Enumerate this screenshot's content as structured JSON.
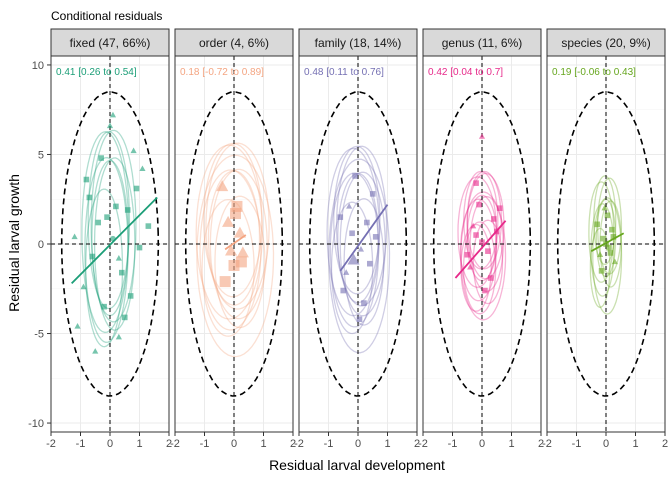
{
  "chart_data": {
    "type": "scatter",
    "title": "Conditional residuals",
    "xlabel": "Residual larval development",
    "ylabel": "Residual larval growth",
    "xlim": [
      -2,
      2
    ],
    "ylim": [
      -10.5,
      10.5
    ],
    "x_ticks": [
      -2,
      -1,
      0,
      1,
      2
    ],
    "x_tick_labels": [
      "-2",
      "-1",
      "0",
      "1",
      "2"
    ],
    "y_ticks": [
      -10,
      -5,
      0,
      5,
      10
    ],
    "y_tick_labels": [
      "-10",
      "-5",
      "0",
      "5",
      "10"
    ],
    "grid": true,
    "reference_lines": {
      "x": 0,
      "y": 0,
      "style": "dashed"
    },
    "overall_ellipse": {
      "cx": 0,
      "cy": 0,
      "angle_deg": 28,
      "major_sd": 10.5,
      "minor_sd": 1.35
    },
    "panels": [
      {
        "strip": "fixed (47, 66%)",
        "annotation": "0.41 [0.26 to 0.54]",
        "color": "#1b9e77",
        "regression": {
          "x": [
            -1.3,
            1.6
          ],
          "y": [
            -2.2,
            2.6
          ]
        },
        "ellipse_spread": {
          "rx": 0.85,
          "ry": 6.0,
          "count": 7
        },
        "points": [
          {
            "x": -0.4,
            "y": 1.2,
            "shape": "square"
          },
          {
            "x": 0.3,
            "y": -0.8,
            "shape": "triangle"
          },
          {
            "x": 0.9,
            "y": 3.1,
            "shape": "square"
          },
          {
            "x": -0.9,
            "y": -2.4,
            "shape": "triangle"
          },
          {
            "x": 0.1,
            "y": 0.3,
            "shape": "circle"
          },
          {
            "x": 0.6,
            "y": 1.9,
            "shape": "square"
          },
          {
            "x": -0.2,
            "y": -3.5,
            "shape": "square"
          },
          {
            "x": 1.1,
            "y": 4.2,
            "shape": "triangle"
          },
          {
            "x": -0.7,
            "y": 2.6,
            "shape": "square"
          },
          {
            "x": 0.4,
            "y": -1.6,
            "shape": "square"
          },
          {
            "x": -1.1,
            "y": -4.6,
            "shape": "triangle"
          },
          {
            "x": 0.8,
            "y": 5.2,
            "shape": "triangle"
          },
          {
            "x": -0.3,
            "y": 4.8,
            "shape": "square"
          },
          {
            "x": 0.5,
            "y": -4.1,
            "shape": "square"
          },
          {
            "x": 0.0,
            "y": 6.6,
            "shape": "triangle"
          },
          {
            "x": 0.2,
            "y": 2.1,
            "shape": "square"
          },
          {
            "x": -0.6,
            "y": -0.7,
            "shape": "square"
          },
          {
            "x": 1.3,
            "y": 1.0,
            "shape": "square"
          },
          {
            "x": -1.2,
            "y": 0.4,
            "shape": "triangle"
          },
          {
            "x": 0.7,
            "y": -2.9,
            "shape": "square"
          },
          {
            "x": 0.1,
            "y": 7.2,
            "shape": "triangle"
          },
          {
            "x": -0.5,
            "y": -6.0,
            "shape": "triangle"
          },
          {
            "x": 1.0,
            "y": -0.2,
            "shape": "square"
          },
          {
            "x": -0.8,
            "y": 3.6,
            "shape": "square"
          },
          {
            "x": 0.3,
            "y": -5.2,
            "shape": "triangle"
          },
          {
            "x": -0.1,
            "y": 1.5,
            "shape": "square"
          }
        ]
      },
      {
        "strip": "order (4, 6%)",
        "annotation": "0.18 [-0.72 to 0.89]",
        "color": "#f4a582",
        "regression": {
          "x": [
            -0.3,
            0.4
          ],
          "y": [
            -0.3,
            0.5
          ]
        },
        "ellipse_spread": {
          "rx": 1.2,
          "ry": 5.2,
          "count": 9
        },
        "points": [
          {
            "x": 0.1,
            "y": 2.1,
            "shape": "square",
            "size": "large"
          },
          {
            "x": -0.2,
            "y": 1.2,
            "shape": "triangle",
            "size": "large"
          },
          {
            "x": 0.3,
            "y": -0.5,
            "shape": "triangle",
            "size": "large"
          },
          {
            "x": 0.0,
            "y": -1.2,
            "shape": "square",
            "size": "large"
          },
          {
            "x": -0.3,
            "y": -2.1,
            "shape": "square",
            "size": "large"
          },
          {
            "x": 0.2,
            "y": 0.6,
            "shape": "triangle",
            "size": "large"
          },
          {
            "x": 0.05,
            "y": 1.7,
            "shape": "square",
            "size": "large"
          },
          {
            "x": -0.1,
            "y": -0.4,
            "shape": "triangle",
            "size": "large"
          },
          {
            "x": 0.25,
            "y": -1.0,
            "shape": "square",
            "size": "large"
          },
          {
            "x": -0.4,
            "y": 3.2,
            "shape": "triangle",
            "size": "large"
          }
        ]
      },
      {
        "strip": "family (18, 14%)",
        "annotation": "0.48 [0.11 to 0.76]",
        "color": "#7570b3",
        "regression": {
          "x": [
            -0.6,
            1.0
          ],
          "y": [
            -1.5,
            2.2
          ]
        },
        "ellipse_spread": {
          "rx": 0.95,
          "ry": 5.0,
          "count": 9
        },
        "points": [
          {
            "x": -0.2,
            "y": 0.6,
            "shape": "square"
          },
          {
            "x": 0.3,
            "y": 1.2,
            "shape": "square"
          },
          {
            "x": -0.4,
            "y": -1.6,
            "shape": "triangle"
          },
          {
            "x": 0.5,
            "y": 2.8,
            "shape": "square"
          },
          {
            "x": -0.5,
            "y": -2.6,
            "shape": "square"
          },
          {
            "x": 0.1,
            "y": -0.3,
            "shape": "triangle"
          },
          {
            "x": 0.6,
            "y": 0.4,
            "shape": "square"
          },
          {
            "x": -0.1,
            "y": 3.8,
            "shape": "square"
          },
          {
            "x": 0.2,
            "y": -3.3,
            "shape": "square"
          },
          {
            "x": -0.3,
            "y": 2.1,
            "shape": "triangle"
          },
          {
            "x": 0.4,
            "y": -1.1,
            "shape": "square"
          },
          {
            "x": -0.6,
            "y": 1.5,
            "shape": "square"
          },
          {
            "x": 0.05,
            "y": -4.2,
            "shape": "square"
          },
          {
            "x": -0.15,
            "y": -0.9,
            "shape": "triangle",
            "size": "large"
          }
        ]
      },
      {
        "strip": "genus (11, 6%)",
        "annotation": "0.42 [0.04 to 0.7]",
        "color": "#e7298a",
        "regression": {
          "x": [
            -0.9,
            0.8
          ],
          "y": [
            -1.9,
            1.3
          ]
        },
        "ellipse_spread": {
          "rx": 0.7,
          "ry": 3.3,
          "count": 11
        },
        "points": [
          {
            "x": -0.2,
            "y": 0.5,
            "shape": "square"
          },
          {
            "x": 0.2,
            "y": -0.4,
            "shape": "square"
          },
          {
            "x": -0.4,
            "y": -1.3,
            "shape": "triangle"
          },
          {
            "x": 0.4,
            "y": 1.4,
            "shape": "square"
          },
          {
            "x": 0.0,
            "y": 0.1,
            "shape": "square"
          },
          {
            "x": -0.1,
            "y": 2.2,
            "shape": "square"
          },
          {
            "x": 0.3,
            "y": -1.9,
            "shape": "square"
          },
          {
            "x": -0.3,
            "y": 1.0,
            "shape": "triangle"
          },
          {
            "x": 0.5,
            "y": 0.7,
            "shape": "square"
          },
          {
            "x": -0.5,
            "y": -0.6,
            "shape": "square"
          },
          {
            "x": 0.1,
            "y": -2.6,
            "shape": "square"
          },
          {
            "x": 0.0,
            "y": 6.0,
            "shape": "triangle"
          },
          {
            "x": -0.2,
            "y": 3.4,
            "shape": "square"
          },
          {
            "x": 0.6,
            "y": 2.0,
            "shape": "square"
          }
        ]
      },
      {
        "strip": "species (20, 9%)",
        "annotation": "0.19 [-0.06 to 0.43]",
        "color": "#66a61e",
        "regression": {
          "x": [
            -0.5,
            0.6
          ],
          "y": [
            -0.4,
            0.6
          ]
        },
        "ellipse_spread": {
          "rx": 0.45,
          "ry": 3.0,
          "count": 8
        },
        "points": [
          {
            "x": -0.1,
            "y": 0.3,
            "shape": "square"
          },
          {
            "x": 0.1,
            "y": -0.2,
            "shape": "square"
          },
          {
            "x": -0.2,
            "y": -0.6,
            "shape": "triangle"
          },
          {
            "x": 0.2,
            "y": 0.8,
            "shape": "square"
          },
          {
            "x": 0.0,
            "y": 0.0,
            "shape": "square"
          },
          {
            "x": -0.3,
            "y": 1.1,
            "shape": "square"
          },
          {
            "x": 0.3,
            "y": -1.0,
            "shape": "triangle"
          },
          {
            "x": 0.05,
            "y": 1.6,
            "shape": "square"
          },
          {
            "x": -0.15,
            "y": -1.5,
            "shape": "square"
          },
          {
            "x": 0.25,
            "y": 0.4,
            "shape": "square"
          },
          {
            "x": -0.05,
            "y": 2.0,
            "shape": "triangle"
          },
          {
            "x": 0.15,
            "y": -0.5,
            "shape": "square"
          }
        ]
      }
    ]
  }
}
